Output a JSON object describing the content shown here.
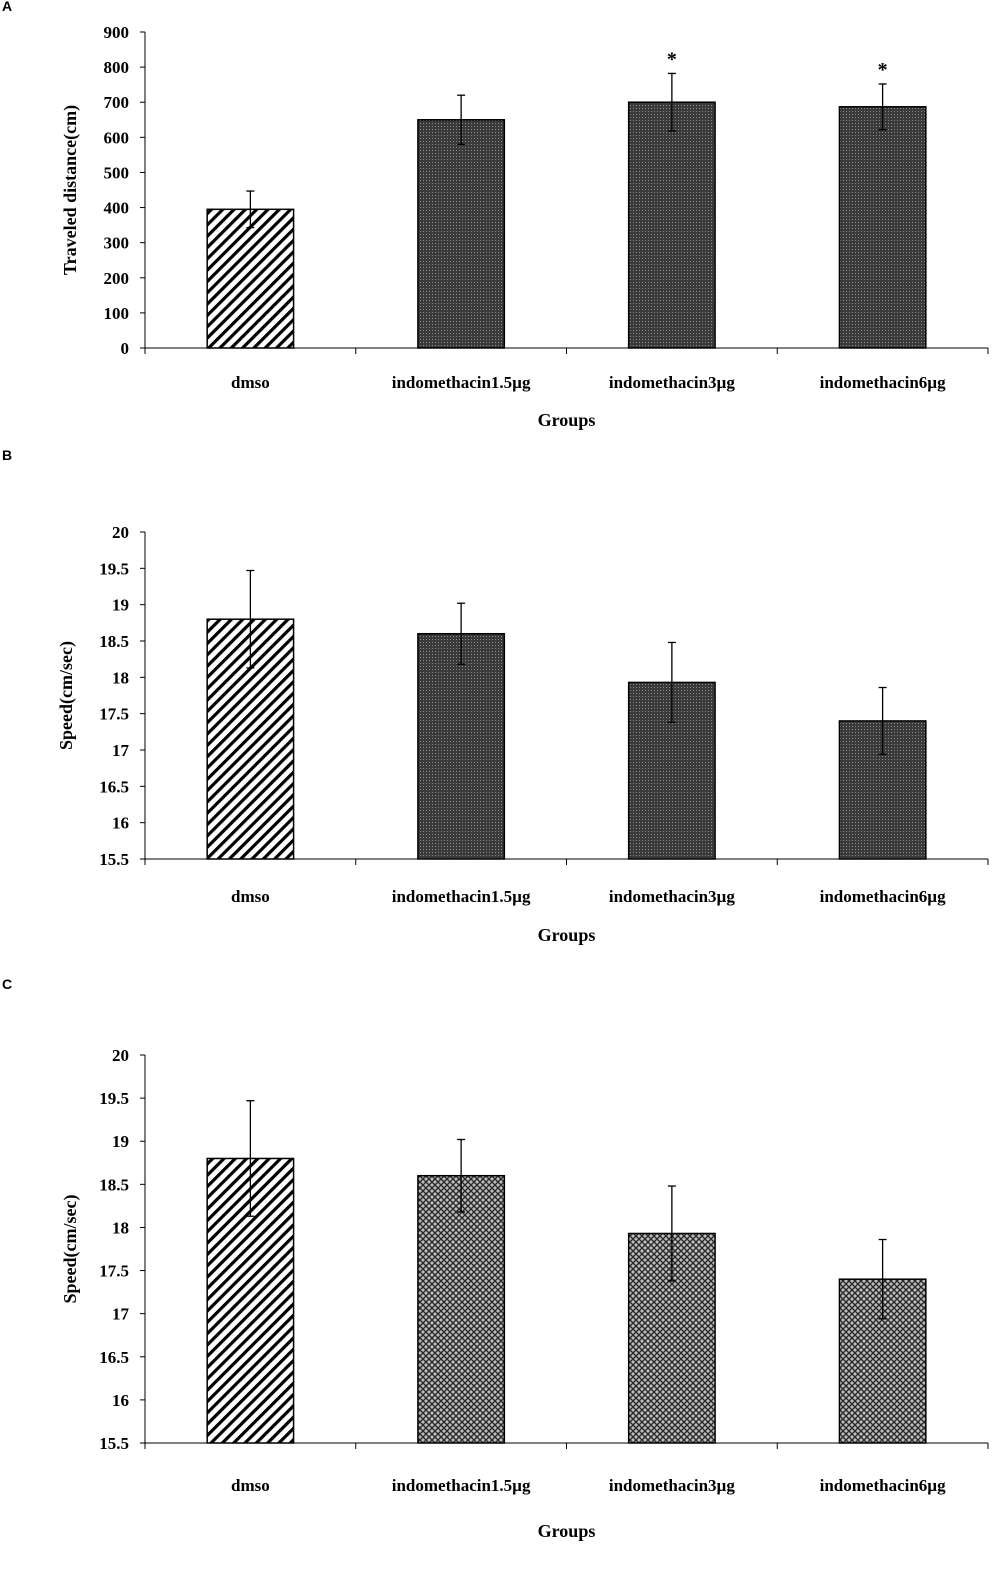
{
  "chart_data": [
    {
      "panel": "A",
      "type": "bar",
      "categories": [
        "dmso",
        "indomethacin1.5µg",
        "indomethacin3µg",
        "indomethacin6µg"
      ],
      "values": [
        395,
        650,
        700,
        687
      ],
      "errors": [
        52,
        70,
        82,
        65
      ],
      "significance": [
        "",
        "",
        "*",
        "*"
      ],
      "patterns": [
        "diagonal",
        "dots",
        "dots",
        "dots"
      ],
      "xlabel": "Groups",
      "ylabel": "Traveled distance(cm)",
      "ylim": [
        0,
        900
      ],
      "yticks": [
        0,
        100,
        200,
        300,
        400,
        500,
        600,
        700,
        800,
        900
      ],
      "grid": false
    },
    {
      "panel": "B",
      "type": "bar",
      "categories": [
        "dmso",
        "indomethacin1.5µg",
        "indomethacin3µg",
        "indomethacin6µg"
      ],
      "values": [
        18.8,
        18.6,
        17.93,
        17.4
      ],
      "errors": [
        0.67,
        0.42,
        0.55,
        0.46
      ],
      "significance": [
        "",
        "",
        "",
        ""
      ],
      "patterns": [
        "diagonal",
        "dots",
        "dots",
        "dots"
      ],
      "xlabel": "Groups",
      "ylabel": "Speed(cm/sec)",
      "ylim": [
        15.5,
        20
      ],
      "yticks": [
        15.5,
        16,
        16.5,
        17,
        17.5,
        18,
        18.5,
        19,
        19.5,
        20
      ],
      "grid": false
    },
    {
      "panel": "C",
      "type": "bar",
      "categories": [
        "dmso",
        "indomethacin1.5µg",
        "indomethacin3µg",
        "indomethacin6µg"
      ],
      "values": [
        18.8,
        18.6,
        17.93,
        17.4
      ],
      "errors": [
        0.67,
        0.42,
        0.55,
        0.46
      ],
      "significance": [
        "",
        "",
        "",
        ""
      ],
      "patterns": [
        "diagonal",
        "crosshatch",
        "crosshatch",
        "crosshatch"
      ],
      "xlabel": "Groups",
      "ylabel": "Speed(cm/sec)",
      "ylim": [
        15.5,
        20
      ],
      "yticks": [
        15.5,
        16,
        16.5,
        17,
        17.5,
        18,
        18.5,
        19,
        19.5,
        20
      ],
      "grid": false
    }
  ]
}
